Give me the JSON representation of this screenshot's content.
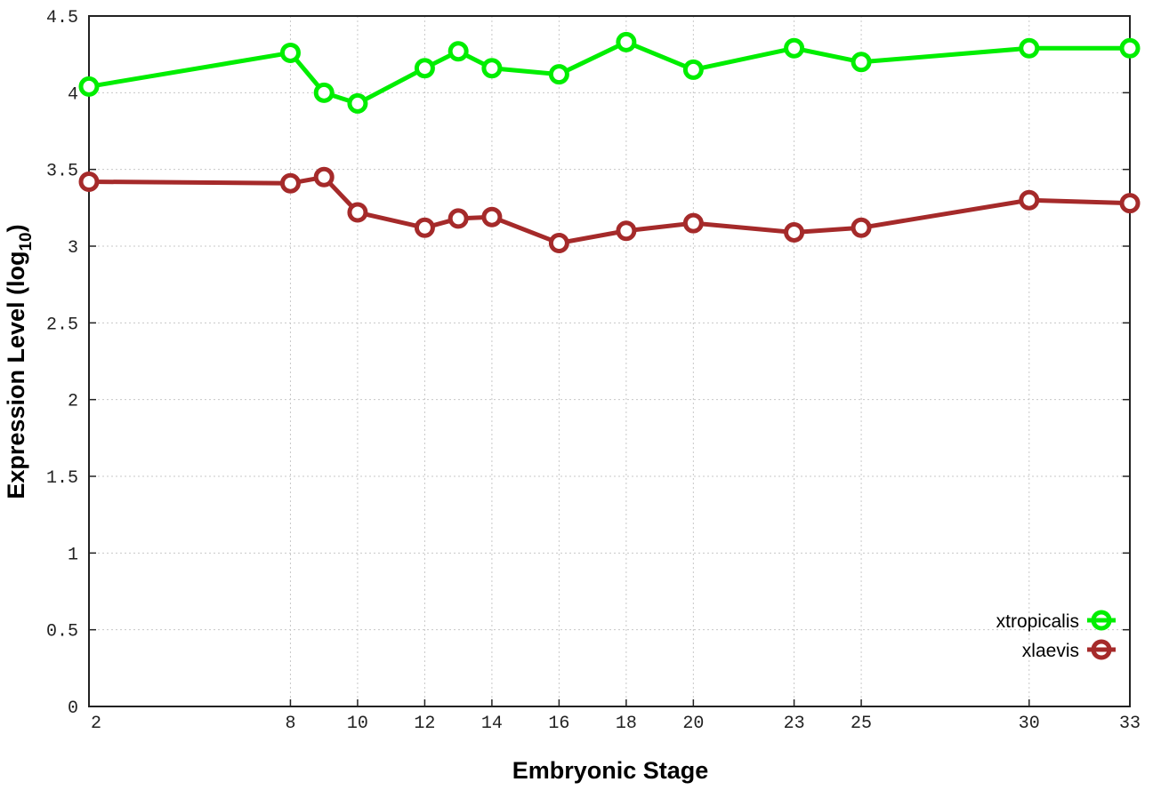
{
  "chart_data": {
    "type": "line",
    "title": "",
    "xlabel": "Embryonic Stage",
    "ylabel": "Expression Level (log",
    "ylabel_subscript": "10",
    "ylabel_suffix": ")",
    "xlim": [
      2,
      33
    ],
    "ylim": [
      0,
      4.5
    ],
    "x": [
      2,
      8,
      9,
      10,
      12,
      13,
      14,
      16,
      18,
      20,
      23,
      25,
      30,
      33
    ],
    "xticks": [
      2,
      8,
      10,
      12,
      14,
      16,
      18,
      20,
      23,
      25,
      30,
      33
    ],
    "yticks": [
      "0",
      "0.5",
      "1",
      "1.5",
      "2",
      "2.5",
      "3",
      "3.5",
      "4",
      "4.5"
    ],
    "grid": true,
    "legend_position": "bottom-right",
    "series": [
      {
        "name": "xtropicalis",
        "color": "#00ee00",
        "values": [
          4.04,
          4.26,
          4.0,
          3.93,
          4.16,
          4.27,
          4.16,
          4.12,
          4.33,
          4.15,
          4.29,
          4.2,
          4.29,
          4.29
        ]
      },
      {
        "name": "xlaevis",
        "color": "#a52a2a",
        "values": [
          3.42,
          3.41,
          3.45,
          3.22,
          3.12,
          3.18,
          3.19,
          3.02,
          3.1,
          3.15,
          3.09,
          3.12,
          3.3,
          3.28
        ]
      }
    ]
  }
}
